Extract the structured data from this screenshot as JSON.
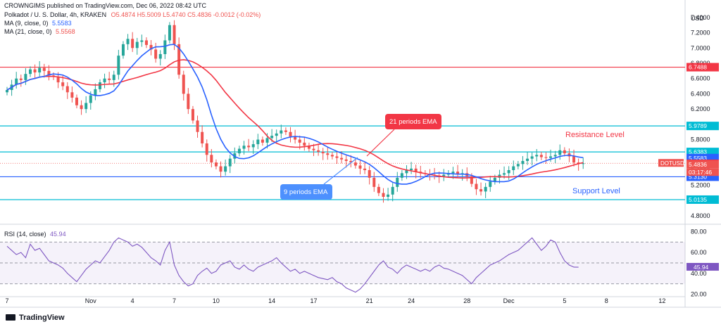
{
  "header": {
    "publisher_line": "CROWNGIMS published on TradingView.com, Dec 06, 2022 08:42 UTC",
    "symbol": "Polkadot / U. S. Dollar, 4h, KRAKEN",
    "ohlc": "O5.4874 H5.5009 L5.4740 C5.4836 -0.0012 (-0.02%)",
    "ma9_label": "MA (9, close, 0)",
    "ma9_value": "5.5583",
    "ma21_label": "MA (21, close, 0)",
    "ma21_value": "5.5568",
    "rsi_label": "RSI (14, close)",
    "rsi_value": "45.94"
  },
  "footer": {
    "brand": "TradingView"
  },
  "colors": {
    "resistance_line": "#f23645",
    "support_line": "#2962ff",
    "horizontal_levels": "#00bcd4",
    "ma9": "#2962ff",
    "ma21": "#f23645",
    "rsi": "#7e57c2",
    "bull": "#26a69a",
    "bear": "#ef5350"
  },
  "chart_data": [
    {
      "type": "candlestick",
      "title": "Polkadot / U. S. Dollar, 4h, KRAKEN",
      "price_axis_label": "USD",
      "ylim": [
        4.7,
        7.5
      ],
      "yticks": [
        "7.4000",
        "7.2000",
        "7.0000",
        "6.8000",
        "6.6000",
        "6.4000",
        "6.2000",
        "6.0000",
        "5.8000",
        "5.6000",
        "5.4000",
        "5.2000",
        "5.0000",
        "4.8000"
      ],
      "x_ticks": [
        "7",
        "Nov",
        "4",
        "7",
        "10",
        "14",
        "17",
        "21",
        "24",
        "28",
        "Dec",
        "5",
        "8",
        "12"
      ],
      "x_tick_idx": [
        0,
        18,
        27,
        36,
        45,
        57,
        66,
        78,
        87,
        99,
        108,
        120,
        129,
        141
      ],
      "x_total": 143,
      "horizontal_levels": [
        {
          "value": 6.7488,
          "label": "6.7488",
          "role": "resistance"
        },
        {
          "value": 5.9789,
          "label": "5.9789"
        },
        {
          "value": 5.6383,
          "label": "5.6383"
        },
        {
          "value": 5.313,
          "label": "5.3130",
          "role": "support"
        },
        {
          "value": 5.0135,
          "label": "5.0135"
        }
      ],
      "price_tags": [
        {
          "label": "5.5583",
          "value": 5.5583,
          "kind": "ma9"
        },
        {
          "label": "5.5568",
          "value": 5.5568,
          "kind": "ma21"
        },
        {
          "label": "5.4836",
          "value": 5.4836,
          "kind": "last"
        },
        {
          "label": "03:17:46",
          "value": 5.4836,
          "kind": "countdown"
        }
      ],
      "symbol_tag": "DOTUSD",
      "annotations": {
        "ema21": "21 periods EMA",
        "ema9": "9 periods EMA",
        "resistance": "Resistance Level",
        "support": "Support Level"
      },
      "close": [
        6.45,
        6.52,
        6.6,
        6.58,
        6.66,
        6.72,
        6.68,
        6.74,
        6.7,
        6.64,
        6.62,
        6.55,
        6.5,
        6.42,
        6.35,
        6.25,
        6.2,
        6.28,
        6.38,
        6.46,
        6.55,
        6.6,
        6.58,
        6.65,
        6.9,
        7.05,
        7.12,
        7.0,
        7.08,
        7.1,
        7.04,
        6.98,
        6.86,
        6.92,
        7.1,
        7.3,
        7.05,
        6.65,
        6.4,
        6.2,
        6.05,
        5.9,
        5.75,
        5.6,
        5.5,
        5.45,
        5.38,
        5.45,
        5.55,
        5.62,
        5.68,
        5.72,
        5.7,
        5.74,
        5.8,
        5.76,
        5.82,
        5.85,
        5.88,
        5.92,
        5.9,
        5.84,
        5.8,
        5.76,
        5.72,
        5.68,
        5.66,
        5.64,
        5.62,
        5.6,
        5.58,
        5.56,
        5.54,
        5.52,
        5.5,
        5.46,
        5.42,
        5.4,
        5.3,
        5.18,
        5.1,
        5.05,
        5.08,
        5.18,
        5.3,
        5.36,
        5.4,
        5.42,
        5.38,
        5.36,
        5.35,
        5.34,
        5.33,
        5.32,
        5.34,
        5.36,
        5.38,
        5.35,
        5.36,
        5.32,
        5.22,
        5.15,
        5.12,
        5.18,
        5.25,
        5.3,
        5.34,
        5.36,
        5.4,
        5.45,
        5.48,
        5.52,
        5.55,
        5.58,
        5.6,
        5.57,
        5.56,
        5.58,
        5.6,
        5.66,
        5.62,
        5.58,
        5.5,
        5.48,
        5.49
      ],
      "rsi": {
        "ylim": [
          15,
          85
        ],
        "yticks": [
          "80.00",
          "60.00",
          "40.00",
          "20.00"
        ],
        "bands": [
          70,
          50,
          30
        ],
        "values": [
          66,
          62,
          58,
          60,
          55,
          68,
          62,
          64,
          58,
          52,
          50,
          48,
          45,
          40,
          36,
          32,
          38,
          44,
          48,
          52,
          50,
          56,
          62,
          70,
          74,
          72,
          70,
          66,
          68,
          65,
          60,
          55,
          52,
          48,
          62,
          70,
          48,
          38,
          32,
          28,
          30,
          38,
          42,
          45,
          40,
          42,
          48,
          50,
          52,
          46,
          44,
          48,
          44,
          42,
          46,
          48,
          50,
          52,
          55,
          50,
          46,
          42,
          44,
          40,
          42,
          40,
          38,
          36,
          35,
          34,
          36,
          32,
          30,
          26,
          24,
          22,
          25,
          30,
          36,
          42,
          48,
          52,
          46,
          44,
          40,
          45,
          48,
          46,
          44,
          42,
          44,
          42,
          46,
          48,
          45,
          44,
          42,
          40,
          38,
          34,
          30,
          36,
          40,
          44,
          48,
          50,
          52,
          55,
          58,
          60,
          62,
          66,
          70,
          74,
          68,
          62,
          66,
          72,
          70,
          60,
          52,
          48,
          46,
          45.94
        ]
      }
    }
  ]
}
